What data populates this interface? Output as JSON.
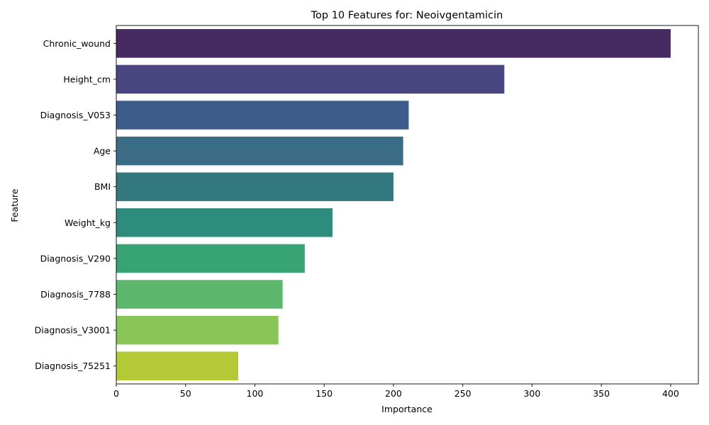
{
  "chart_data": {
    "type": "bar",
    "orientation": "horizontal",
    "title": "Top 10 Features for: Neoivgentamicin",
    "xlabel": "Importance",
    "ylabel": "Feature",
    "xlim": [
      0,
      420
    ],
    "xticks": [
      0,
      50,
      100,
      150,
      200,
      250,
      300,
      350,
      400
    ],
    "grid": false,
    "categories": [
      "Chronic_wound",
      "Height_cm",
      "Diagnosis_V053",
      "Age",
      "BMI",
      "Weight_kg",
      "Diagnosis_V290",
      "Diagnosis_7788",
      "Diagnosis_V3001",
      "Diagnosis_75251"
    ],
    "values": [
      400,
      280,
      211,
      207,
      200,
      156,
      136,
      120,
      117,
      88
    ],
    "colors": [
      "#482a63",
      "#4a4680",
      "#3e5c8a",
      "#3b6c85",
      "#32787e",
      "#2e8c7c",
      "#38a374",
      "#5db76c",
      "#89c456",
      "#b3c935"
    ]
  }
}
